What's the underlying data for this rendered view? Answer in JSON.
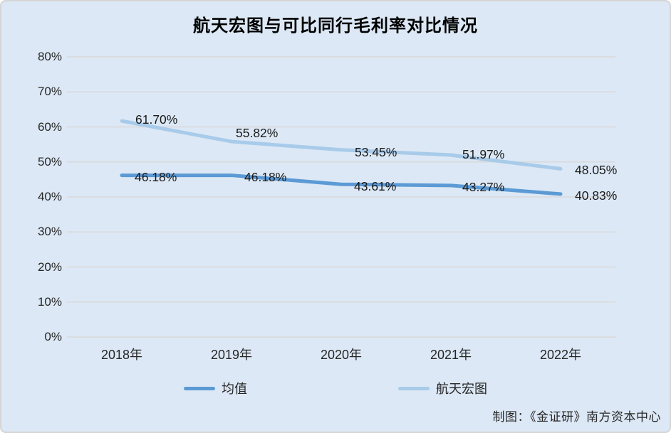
{
  "title": "航天宏图与可比同行毛利率对比情况",
  "credit": "制图：《金证研》南方资本中心",
  "legend": {
    "items": [
      {
        "label": "均值"
      },
      {
        "label": "航天宏图"
      }
    ]
  },
  "chart_data": {
    "type": "line",
    "title": "航天宏图与可比同行毛利率对比情况",
    "categories": [
      "2018年",
      "2019年",
      "2020年",
      "2021年",
      "2022年"
    ],
    "series": [
      {
        "name": "均值",
        "color": "#5b9ad5",
        "values": [
          46.18,
          46.18,
          43.61,
          43.27,
          40.83
        ],
        "labels": [
          "46.18%",
          "46.18%",
          "43.61%",
          "43.27%",
          "40.83%"
        ]
      },
      {
        "name": "航天宏图",
        "color": "#a8cbea",
        "values": [
          61.7,
          55.82,
          53.45,
          51.97,
          48.05
        ],
        "labels": [
          "61.70%",
          "55.82%",
          "53.45%",
          "51.97%",
          "48.05%"
        ]
      }
    ],
    "ylim": [
      0,
      80
    ],
    "ytick_step": 10,
    "yticks": [
      "0%",
      "10%",
      "20%",
      "30%",
      "40%",
      "50%",
      "60%",
      "70%",
      "80%"
    ],
    "grid": true,
    "legend_position": "bottom",
    "background_color": "#dce8f5",
    "gridline_color": "#d9d9d9"
  }
}
